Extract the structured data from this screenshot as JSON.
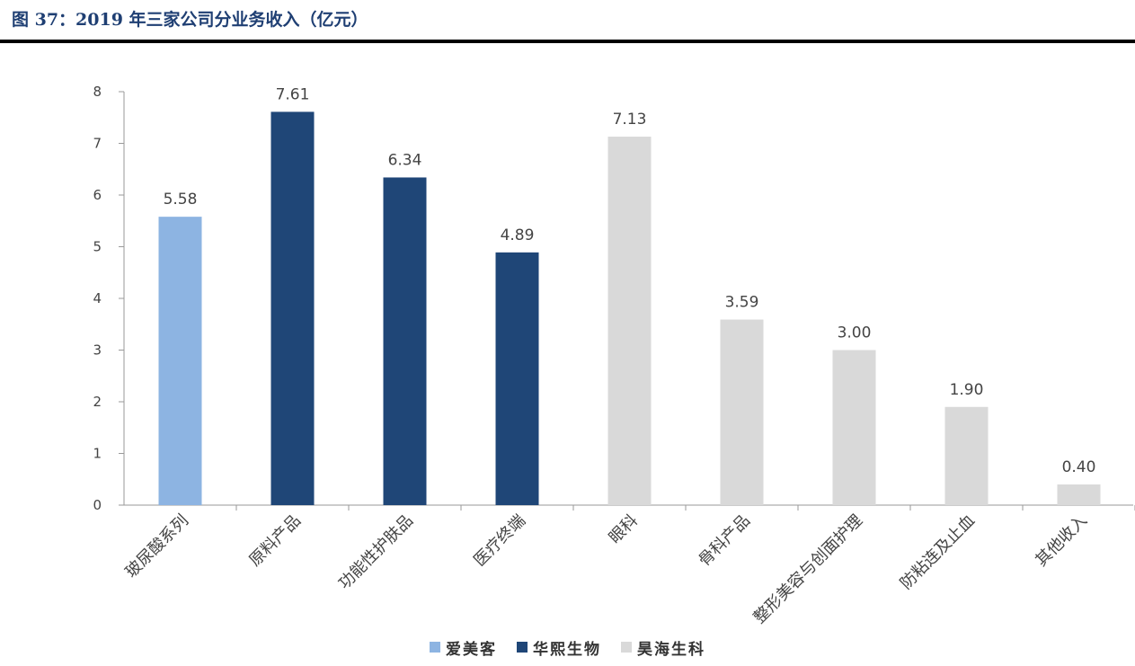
{
  "figure": {
    "title": "图 37：2019 年三家公司分业务收入（亿元）"
  },
  "chart_data": {
    "type": "bar",
    "categories": [
      "玻尿酸系列",
      "原料产品",
      "功能性护肤品",
      "医疗终端",
      "眼科",
      "骨科产品",
      "整形美容与创面护理",
      "防粘连及止血",
      "其他收入"
    ],
    "values": [
      5.58,
      7.61,
      6.34,
      4.89,
      7.13,
      3.59,
      3.0,
      1.9,
      0.4
    ],
    "value_labels": [
      "5.58",
      "7.61",
      "6.34",
      "4.89",
      "7.13",
      "3.59",
      "3.00",
      "1.90",
      "0.40"
    ],
    "company_index": [
      0,
      1,
      1,
      1,
      2,
      2,
      2,
      2,
      2
    ],
    "companies": [
      {
        "name": "爱美客",
        "color": "#8db4e2"
      },
      {
        "name": "华熙生物",
        "color": "#1f4677"
      },
      {
        "name": "昊海生科",
        "color": "#d9d9d9"
      }
    ],
    "yticks": [
      "0",
      "1",
      "2",
      "3",
      "4",
      "5",
      "6",
      "7",
      "8"
    ],
    "ylim": [
      0,
      8
    ],
    "grid": false,
    "legend_position": "bottom"
  }
}
